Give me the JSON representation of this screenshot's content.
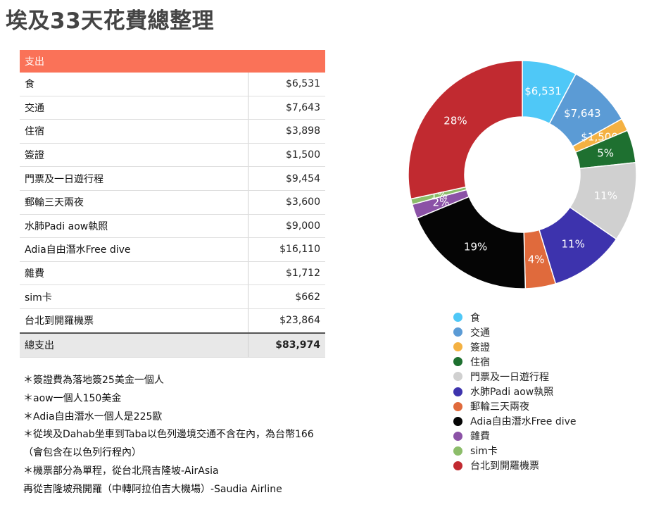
{
  "title": "埃及33天花費總整理",
  "table": {
    "header": "支出",
    "rows": [
      {
        "label": "食",
        "amount": "$6,531"
      },
      {
        "label": "交通",
        "amount": "$7,643"
      },
      {
        "label": "住宿",
        "amount": "$3,898"
      },
      {
        "label": "簽證",
        "amount": "$1,500"
      },
      {
        "label": "門票及一日遊行程",
        "amount": "$9,454"
      },
      {
        "label": "郵輪三天兩夜",
        "amount": "$3,600"
      },
      {
        "label": "水肺Padi aow執照",
        "amount": "$9,000"
      },
      {
        "label": "Adia自由潛水Free dive",
        "amount": "$16,110"
      },
      {
        "label": "雜費",
        "amount": "$1,712"
      },
      {
        "label": "sim卡",
        "amount": "$662"
      },
      {
        "label": "台北到開羅機票",
        "amount": "$23,864"
      }
    ],
    "total_label": "總支出",
    "total_amount": "$83,974"
  },
  "notes": [
    "＊簽證費為落地簽25美金一個人",
    "＊aow一個人150美金",
    "＊Adia自由潛水一個人是225歐",
    "＊從埃及Dahab坐車到Taba以色列邊境交通不含在內，為台幣166",
    "（會包含在以色列行程內）",
    "＊機票部分為單程，從台北飛吉隆坡-AirAsia",
    "再從吉隆坡飛開羅（中轉阿拉伯吉大機場）-Saudia Airline"
  ],
  "chart_data": {
    "type": "pie",
    "donut": true,
    "slices": [
      {
        "name": "食",
        "value": 6531,
        "label": "$6,531",
        "color": "#4fc8f7"
      },
      {
        "name": "交通",
        "value": 7643,
        "label": "$7,643",
        "color": "#5b9bd5"
      },
      {
        "name": "簽證",
        "value": 1500,
        "label": "$1,500",
        "color": "#f4b142"
      },
      {
        "name": "住宿",
        "value": 3898,
        "label": "5%",
        "color": "#1e7030"
      },
      {
        "name": "門票及一日遊行程",
        "value": 9454,
        "label": "11%",
        "color": "#d0d0d0"
      },
      {
        "name": "水肺Padi aow執照",
        "value": 9000,
        "label": "11%",
        "color": "#3d33ad"
      },
      {
        "name": "郵輪三天兩夜",
        "value": 3600,
        "label": "4%",
        "color": "#e06a3c"
      },
      {
        "name": "Adia自由潛水Free dive",
        "value": 16110,
        "label": "19%",
        "color": "#050505"
      },
      {
        "name": "雜費",
        "value": 1712,
        "label": "2%",
        "color": "#8b52a6"
      },
      {
        "name": "sim卡",
        "value": 662,
        "label": "1%",
        "color": "#8cbd6a"
      },
      {
        "name": "台北到開羅機票",
        "value": 23864,
        "label": "28%",
        "color": "#c12a30"
      }
    ]
  }
}
